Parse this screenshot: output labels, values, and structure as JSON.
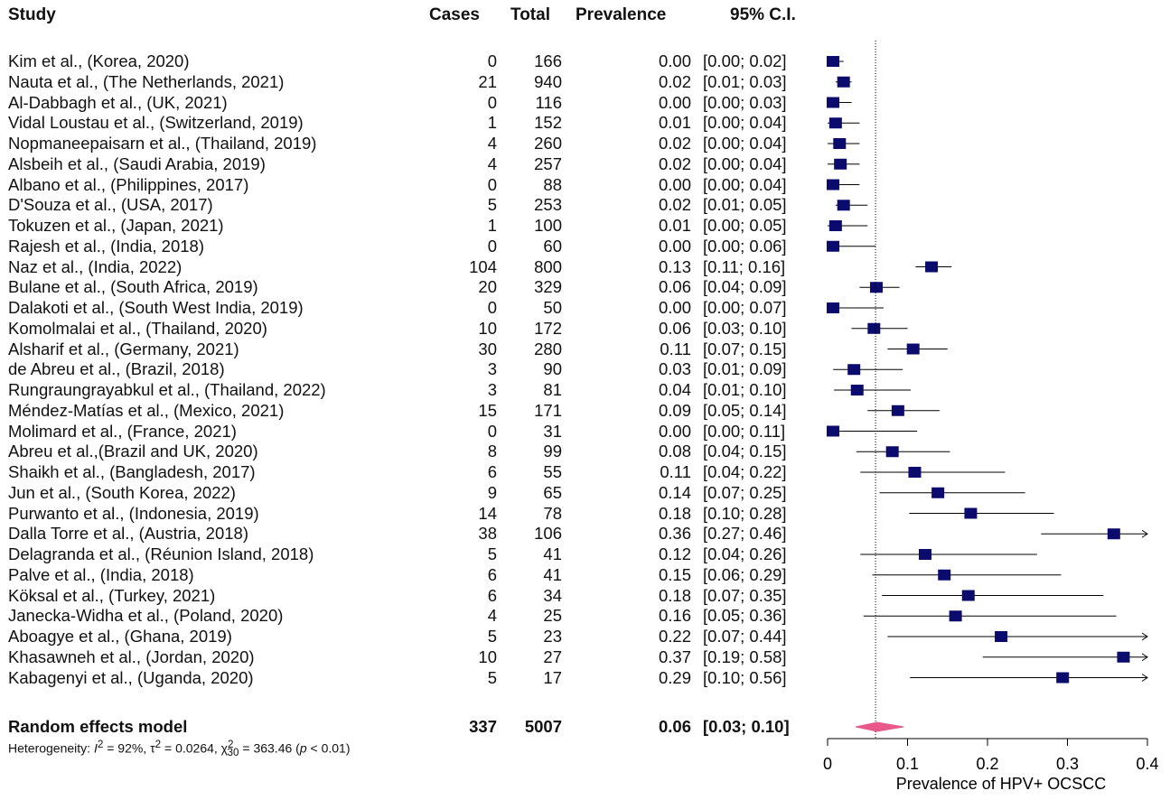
{
  "headers": {
    "study": "Study",
    "cases": "Cases",
    "total": "Total",
    "prevalence": "Prevalence",
    "ci": "95% C.I."
  },
  "chart_data": {
    "type": "forest",
    "xlabel": "Prevalence of HPV+ OCSCC",
    "xlim": [
      0,
      0.4
    ],
    "xticks": [
      "0",
      "0.1",
      "0.2",
      "0.3",
      "0.4"
    ],
    "reference_line": 0.06,
    "colors": {
      "marker": "#0b0b6e",
      "summary": "#e8588a",
      "line": "#000000"
    },
    "studies": [
      {
        "study": "Kim et al., (Korea, 2020)",
        "cases": "0",
        "total": "166",
        "prev": "0.00",
        "ci": "[0.00; 0.02]",
        "est": 0.0,
        "lo": 0.0,
        "hi": 0.02
      },
      {
        "study": "Nauta et al., (The Netherlands, 2021)",
        "cases": "21",
        "total": "940",
        "prev": "0.02",
        "ci": "[0.01; 0.03]",
        "est": 0.02,
        "lo": 0.01,
        "hi": 0.03
      },
      {
        "study": "Al-Dabbagh et al., (UK, 2021)",
        "cases": "0",
        "total": "116",
        "prev": "0.00",
        "ci": "[0.00; 0.03]",
        "est": 0.0,
        "lo": 0.0,
        "hi": 0.03
      },
      {
        "study": "Vidal Loustau et al., (Switzerland, 2019)",
        "cases": "1",
        "total": "152",
        "prev": "0.01",
        "ci": "[0.00; 0.04]",
        "est": 0.01,
        "lo": 0.0,
        "hi": 0.04
      },
      {
        "study": "Nopmaneepaisarn et al., (Thailand, 2019)",
        "cases": "4",
        "total": "260",
        "prev": "0.02",
        "ci": "[0.00; 0.04]",
        "est": 0.015,
        "lo": 0.0,
        "hi": 0.04
      },
      {
        "study": "Alsbeih et al., (Saudi Arabia, 2019)",
        "cases": "4",
        "total": "257",
        "prev": "0.02",
        "ci": "[0.00; 0.04]",
        "est": 0.016,
        "lo": 0.0,
        "hi": 0.04
      },
      {
        "study": "Albano et al., (Philippines, 2017)",
        "cases": "0",
        "total": "88",
        "prev": "0.00",
        "ci": "[0.00; 0.04]",
        "est": 0.0,
        "lo": 0.0,
        "hi": 0.04
      },
      {
        "study": "D'Souza et al., (USA, 2017)",
        "cases": "5",
        "total": "253",
        "prev": "0.02",
        "ci": "[0.01; 0.05]",
        "est": 0.02,
        "lo": 0.01,
        "hi": 0.05
      },
      {
        "study": "Tokuzen et al., (Japan, 2021)",
        "cases": "1",
        "total": "100",
        "prev": "0.01",
        "ci": "[0.00; 0.05]",
        "est": 0.01,
        "lo": 0.0,
        "hi": 0.05
      },
      {
        "study": "Rajesh et al., (India, 2018)",
        "cases": "0",
        "total": "60",
        "prev": "0.00",
        "ci": "[0.00; 0.06]",
        "est": 0.0,
        "lo": 0.0,
        "hi": 0.06
      },
      {
        "study": "Naz et al., (India, 2022)",
        "cases": "104",
        "total": "800",
        "prev": "0.13",
        "ci": "[0.11; 0.16]",
        "est": 0.13,
        "lo": 0.11,
        "hi": 0.155
      },
      {
        "study": "Bulane et al., (South Africa, 2019)",
        "cases": "20",
        "total": "329",
        "prev": "0.06",
        "ci": "[0.04; 0.09]",
        "est": 0.061,
        "lo": 0.04,
        "hi": 0.09
      },
      {
        "study": "Dalakoti et al., (South West India, 2019)",
        "cases": "0",
        "total": "50",
        "prev": "0.00",
        "ci": "[0.00; 0.07]",
        "est": 0.0,
        "lo": 0.0,
        "hi": 0.07
      },
      {
        "study": "Komolmalai et al., (Thailand, 2020)",
        "cases": "10",
        "total": "172",
        "prev": "0.06",
        "ci": "[0.03; 0.10]",
        "est": 0.058,
        "lo": 0.03,
        "hi": 0.1
      },
      {
        "study": "Alsharif et al., (Germany, 2021)",
        "cases": "30",
        "total": "280",
        "prev": "0.11",
        "ci": "[0.07; 0.15]",
        "est": 0.107,
        "lo": 0.075,
        "hi": 0.15
      },
      {
        "study": "de Abreu et al., (Brazil, 2018)",
        "cases": "3",
        "total": "90",
        "prev": "0.03",
        "ci": "[0.01; 0.09]",
        "est": 0.033,
        "lo": 0.007,
        "hi": 0.094
      },
      {
        "study": "Rungraungrayabkul et al., (Thailand, 2022)",
        "cases": "3",
        "total": "81",
        "prev": "0.04",
        "ci": "[0.01; 0.10]",
        "est": 0.037,
        "lo": 0.008,
        "hi": 0.104
      },
      {
        "study": "Méndez-Matías et al., (Mexico, 2021)",
        "cases": "15",
        "total": "171",
        "prev": "0.09",
        "ci": "[0.05; 0.14]",
        "est": 0.088,
        "lo": 0.05,
        "hi": 0.14
      },
      {
        "study": "Molimard et al., (France, 2021)",
        "cases": "0",
        "total": "31",
        "prev": "0.00",
        "ci": "[0.00; 0.11]",
        "est": 0.0,
        "lo": 0.0,
        "hi": 0.112
      },
      {
        "study": "Abreu et al.,(Brazil and UK, 2020)",
        "cases": "8",
        "total": "99",
        "prev": "0.08",
        "ci": "[0.04; 0.15]",
        "est": 0.081,
        "lo": 0.036,
        "hi": 0.153
      },
      {
        "study": "Shaikh et al., (Bangladesh, 2017)",
        "cases": "6",
        "total": "55",
        "prev": "0.11",
        "ci": "[0.04; 0.22]",
        "est": 0.109,
        "lo": 0.041,
        "hi": 0.222
      },
      {
        "study": "Jun et al., (South Korea, 2022)",
        "cases": "9",
        "total": "65",
        "prev": "0.14",
        "ci": "[0.07; 0.25]",
        "est": 0.138,
        "lo": 0.065,
        "hi": 0.247
      },
      {
        "study": "Purwanto et al., (Indonesia, 2019)",
        "cases": "14",
        "total": "78",
        "prev": "0.18",
        "ci": "[0.10; 0.28]",
        "est": 0.179,
        "lo": 0.102,
        "hi": 0.283
      },
      {
        "study": "Dalla Torre et al., (Austria, 2018)",
        "cases": "38",
        "total": "106",
        "prev": "0.36",
        "ci": "[0.27; 0.46]",
        "est": 0.358,
        "lo": 0.267,
        "hi": 0.457,
        "arrow_right": true
      },
      {
        "study": "Delagranda et al., (Réunion Island, 2018)",
        "cases": "5",
        "total": "41",
        "prev": "0.12",
        "ci": "[0.04; 0.26]",
        "est": 0.122,
        "lo": 0.041,
        "hi": 0.262
      },
      {
        "study": "Palve et al., (India, 2018)",
        "cases": "6",
        "total": "41",
        "prev": "0.15",
        "ci": "[0.06; 0.29]",
        "est": 0.146,
        "lo": 0.056,
        "hi": 0.292
      },
      {
        "study": "Köksal et al., (Turkey, 2021)",
        "cases": "6",
        "total": "34",
        "prev": "0.18",
        "ci": "[0.07; 0.35]",
        "est": 0.176,
        "lo": 0.068,
        "hi": 0.345
      },
      {
        "study": "Janecka-Widha et al., (Poland, 2020)",
        "cases": "4",
        "total": "25",
        "prev": "0.16",
        "ci": "[0.05; 0.36]",
        "est": 0.16,
        "lo": 0.045,
        "hi": 0.361
      },
      {
        "study": "Aboagye et al., (Ghana, 2019)",
        "cases": "5",
        "total": "23",
        "prev": "0.22",
        "ci": "[0.07; 0.44]",
        "est": 0.217,
        "lo": 0.075,
        "hi": 0.437,
        "arrow_right": true
      },
      {
        "study": "Khasawneh et al., (Jordan, 2020)",
        "cases": "10",
        "total": "27",
        "prev": "0.37",
        "ci": "[0.19; 0.58]",
        "est": 0.37,
        "lo": 0.194,
        "hi": 0.576,
        "arrow_right": true
      },
      {
        "study": "Kabagenyi et al., (Uganda, 2020)",
        "cases": "5",
        "total": "17",
        "prev": "0.29",
        "ci": "[0.10; 0.56]",
        "est": 0.294,
        "lo": 0.103,
        "hi": 0.56,
        "arrow_right": true
      }
    ],
    "summary": {
      "label": "Random effects model",
      "cases": "337",
      "total": "5007",
      "prev": "0.06",
      "ci": "[0.03; 0.10]",
      "est": 0.062,
      "lo": 0.035,
      "hi": 0.095
    }
  },
  "heterogeneity": {
    "prefix": "Heterogeneity: ",
    "i2": "I",
    "i2_exp": "2",
    "i2_val": " = 92%, ",
    "tau": "τ",
    "tau_exp": "2",
    "tau_val": " = 0.0264, ",
    "chi": "χ",
    "chi_exp": "2",
    "chi_sub": "30",
    "chi_val": " = 363.46 (",
    "p": "p",
    "p_val": " < 0.01)"
  }
}
